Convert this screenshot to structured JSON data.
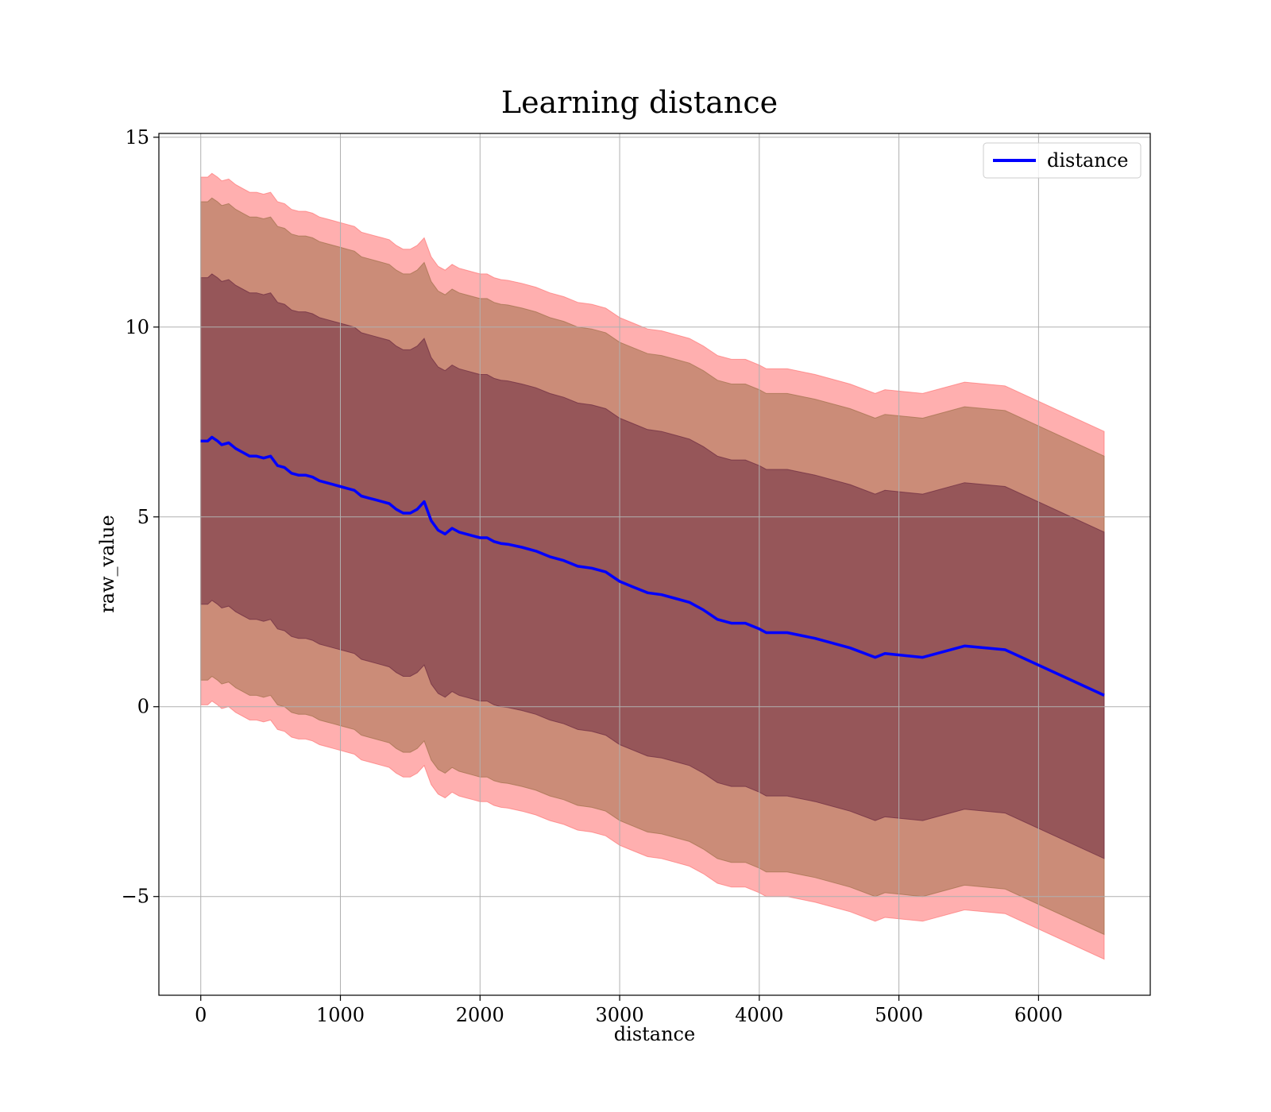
{
  "chart_data": {
    "type": "line",
    "title": "Learning distance",
    "xlabel": "distance",
    "ylabel": "raw_value",
    "xlim": [
      -300,
      6800
    ],
    "ylim": [
      -7.6,
      15.1
    ],
    "xticks": [
      0,
      1000,
      2000,
      3000,
      4000,
      5000,
      6000
    ],
    "xtick_labels": [
      "0",
      "1000",
      "2000",
      "3000",
      "4000",
      "5000",
      "6000"
    ],
    "yticks": [
      -5,
      0,
      5,
      10,
      15
    ],
    "ytick_labels": [
      "−5",
      "0",
      "5",
      "10",
      "15"
    ],
    "grid": true,
    "legend": {
      "placement": "top-right",
      "entries": [
        {
          "label": "distance",
          "color": "#0000ff"
        }
      ]
    },
    "colors": {
      "line": "#0000ff",
      "band_outer": "#ff6666",
      "band_middle": "#a0704a",
      "band_inner": "#6b2a40"
    },
    "band_offsets": {
      "inner": 4.3,
      "middle": 6.3,
      "outer": 6.95
    },
    "series": [
      {
        "name": "distance",
        "x": [
          0,
          50,
          80,
          120,
          150,
          200,
          250,
          300,
          350,
          400,
          450,
          500,
          550,
          600,
          650,
          700,
          750,
          800,
          850,
          900,
          950,
          1000,
          1050,
          1100,
          1150,
          1200,
          1250,
          1300,
          1350,
          1400,
          1450,
          1500,
          1550,
          1600,
          1620,
          1650,
          1700,
          1750,
          1800,
          1850,
          1900,
          1950,
          2000,
          2050,
          2100,
          2150,
          2200,
          2300,
          2400,
          2500,
          2600,
          2700,
          2800,
          2900,
          3000,
          3100,
          3200,
          3300,
          3400,
          3500,
          3600,
          3700,
          3800,
          3900,
          4000,
          4050,
          4200,
          4400,
          4650,
          4830,
          4900,
          5170,
          5470,
          5760,
          6470
        ],
        "y": [
          7.0,
          7.0,
          7.1,
          7.0,
          6.9,
          6.95,
          6.8,
          6.7,
          6.6,
          6.6,
          6.55,
          6.6,
          6.35,
          6.3,
          6.15,
          6.1,
          6.1,
          6.05,
          5.95,
          5.9,
          5.85,
          5.8,
          5.75,
          5.7,
          5.55,
          5.5,
          5.45,
          5.4,
          5.35,
          5.2,
          5.1,
          5.1,
          5.2,
          5.4,
          5.2,
          4.9,
          4.65,
          4.55,
          4.7,
          4.6,
          4.55,
          4.5,
          4.45,
          4.45,
          4.35,
          4.3,
          4.28,
          4.2,
          4.1,
          3.95,
          3.85,
          3.7,
          3.65,
          3.55,
          3.3,
          3.15,
          3.0,
          2.95,
          2.85,
          2.75,
          2.55,
          2.3,
          2.2,
          2.2,
          2.05,
          1.95,
          1.95,
          1.8,
          1.55,
          1.3,
          1.4,
          1.3,
          1.6,
          1.5,
          0.3
        ]
      }
    ]
  }
}
